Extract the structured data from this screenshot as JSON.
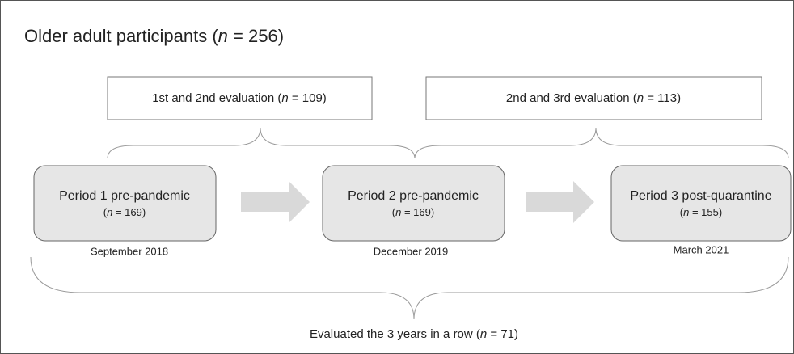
{
  "title": [
    "Older adult participants (",
    "n",
    " = 256)"
  ],
  "evaluations": [
    {
      "label": [
        "1st and 2nd evaluation (",
        "n",
        " = 109)"
      ]
    },
    {
      "label": [
        "2nd and 3rd evaluation (",
        "n",
        " = 113)"
      ]
    }
  ],
  "periods": [
    {
      "label": "Period 1 pre-pandemic",
      "count": [
        "(",
        "n",
        " = 169)"
      ],
      "date": "September 2018"
    },
    {
      "label": "Period 2 pre-pandemic",
      "count": [
        "(",
        "n",
        " = 169)"
      ],
      "date": "December 2019"
    },
    {
      "label": "Period 3 post-quarantine",
      "count": [
        "(",
        "n",
        " = 155)"
      ],
      "date": "March 2021"
    }
  ],
  "footer": [
    "Evaluated the 3 years in a row (",
    "n",
    " = 71)"
  ]
}
